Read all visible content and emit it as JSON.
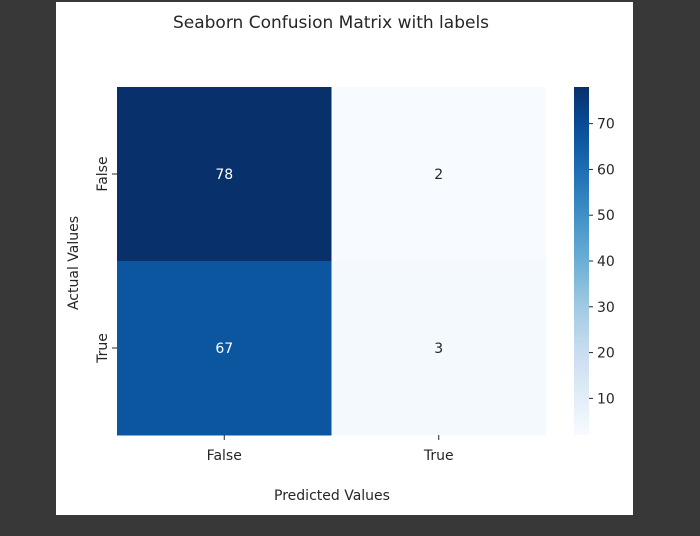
{
  "chart_data": {
    "type": "heatmap",
    "title": "Seaborn Confusion Matrix with labels",
    "xlabel": "Predicted Values",
    "ylabel": "Actual Values",
    "x_categories": [
      "False",
      "True"
    ],
    "y_categories": [
      "False",
      "True"
    ],
    "values": [
      [
        78,
        2
      ],
      [
        67,
        3
      ]
    ],
    "colormap": "Blues",
    "colorbar": {
      "ticks": [
        10,
        20,
        30,
        40,
        50,
        60,
        70
      ],
      "range": [
        2,
        78
      ]
    },
    "colors": {
      "cmap_low": "#f7fbff",
      "cmap_high": "#08306b",
      "annot_light": "#ffffff",
      "annot_dark": "#262626"
    }
  }
}
